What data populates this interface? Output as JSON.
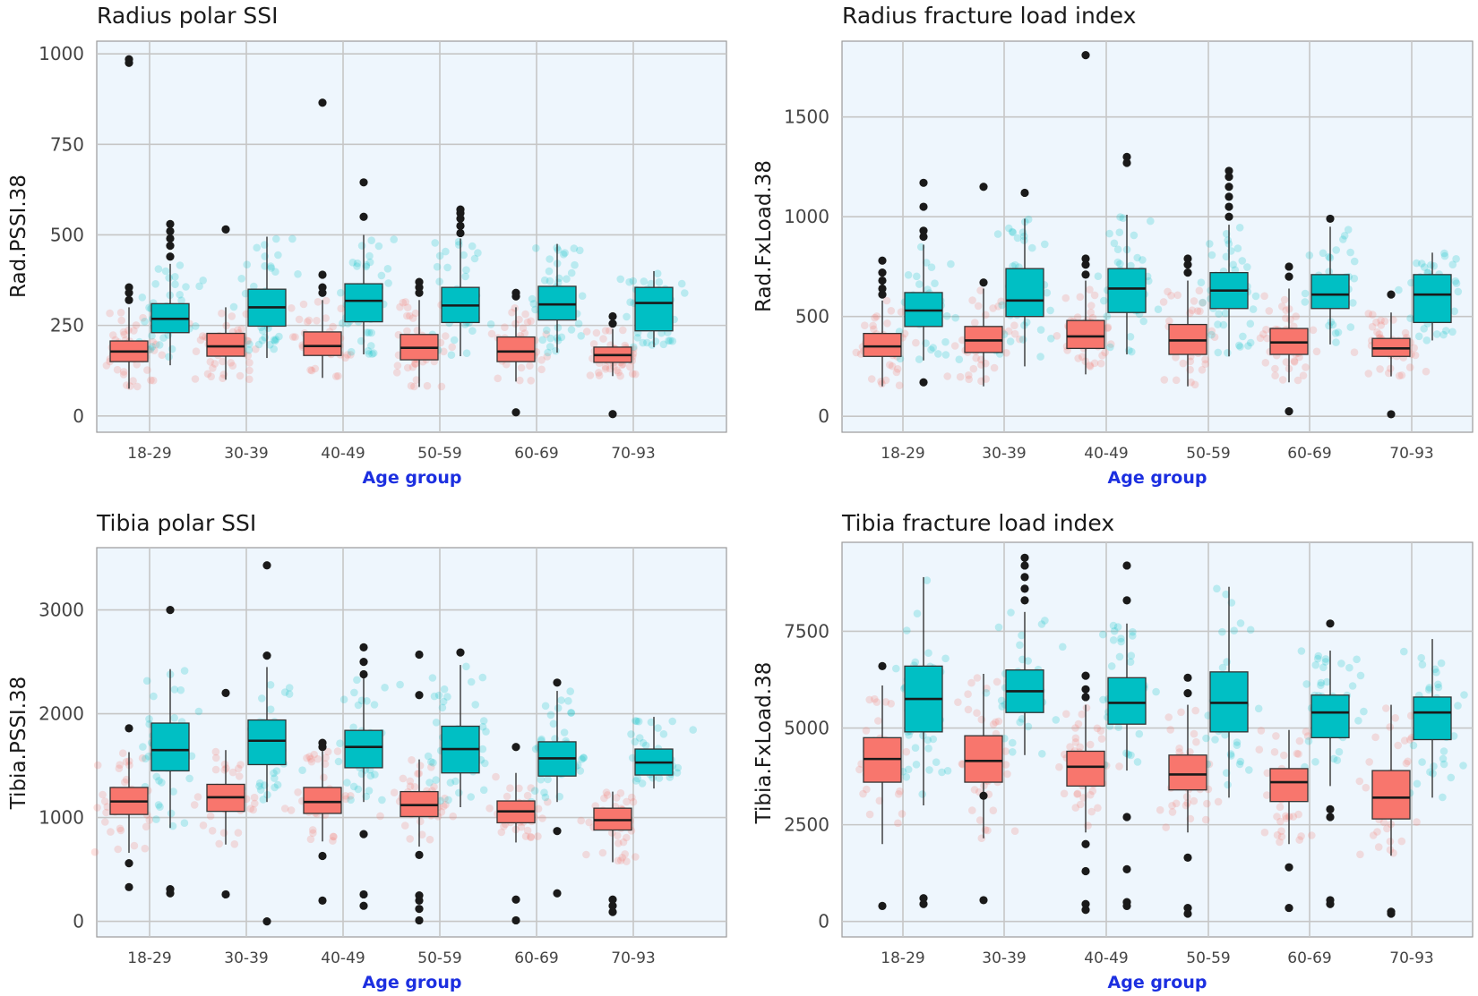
{
  "legend": {
    "group_a_color": "#F8766D",
    "group_b_color": "#00BFC4"
  },
  "chart_data": [
    {
      "type": "box",
      "title": "Radius polar SSI",
      "xlabel": "Age group",
      "ylabel": "Rad.PSSI.38",
      "ylim": [
        -45,
        1035
      ],
      "yticks": [
        0,
        250,
        500,
        750,
        1000
      ],
      "categories": [
        "18-29",
        "30-39",
        "40-49",
        "50-59",
        "60-69",
        "70-93"
      ],
      "series": [
        {
          "name": "red",
          "color": "#F8766D",
          "boxes": [
            {
              "whislo": 75,
              "q1": 150,
              "med": 178,
              "q3": 207,
              "whishi": 300,
              "outliers": [
                320,
                340,
                355,
                975,
                985
              ]
            },
            {
              "whislo": 100,
              "q1": 165,
              "med": 192,
              "q3": 228,
              "whishi": 300,
              "outliers": [
                515
              ]
            },
            {
              "whislo": 105,
              "q1": 167,
              "med": 193,
              "q3": 232,
              "whishi": 320,
              "outliers": [
                340,
                355,
                390,
                865
              ]
            },
            {
              "whislo": 80,
              "q1": 155,
              "med": 188,
              "q3": 225,
              "whishi": 320,
              "outliers": [
                340,
                355,
                370
              ]
            },
            {
              "whislo": 95,
              "q1": 150,
              "med": 178,
              "q3": 218,
              "whishi": 300,
              "outliers": [
                10,
                330,
                340
              ]
            },
            {
              "whislo": 110,
              "q1": 148,
              "med": 168,
              "q3": 190,
              "whishi": 240,
              "outliers": [
                5,
                255,
                275
              ]
            }
          ]
        },
        {
          "name": "teal",
          "color": "#00BFC4",
          "boxes": [
            {
              "whislo": 140,
              "q1": 230,
              "med": 268,
              "q3": 310,
              "whishi": 420,
              "outliers": [
                440,
                470,
                490,
                510,
                530
              ]
            },
            {
              "whislo": 160,
              "q1": 248,
              "med": 300,
              "q3": 350,
              "whishi": 495,
              "outliers": []
            },
            {
              "whislo": 170,
              "q1": 260,
              "med": 318,
              "q3": 365,
              "whishi": 500,
              "outliers": [
                550,
                645
              ]
            },
            {
              "whislo": 165,
              "q1": 258,
              "med": 305,
              "q3": 355,
              "whishi": 490,
              "outliers": [
                505,
                525,
                545,
                560,
                570
              ]
            },
            {
              "whislo": 175,
              "q1": 265,
              "med": 308,
              "q3": 358,
              "whishi": 475,
              "outliers": []
            },
            {
              "whislo": 190,
              "q1": 235,
              "med": 312,
              "q3": 355,
              "whishi": 400,
              "outliers": []
            }
          ]
        }
      ]
    },
    {
      "type": "box",
      "title": "Radius fracture load index",
      "xlabel": "Age group",
      "ylabel": "Rad.FxLoad.38",
      "ylim": [
        -80,
        1880
      ],
      "yticks": [
        0,
        500,
        1000,
        1500
      ],
      "categories": [
        "18-29",
        "30-39",
        "40-49",
        "50-59",
        "60-69",
        "70-93"
      ],
      "series": [
        {
          "name": "red",
          "color": "#F8766D",
          "boxes": [
            {
              "whislo": 150,
              "q1": 300,
              "med": 350,
              "q3": 415,
              "whishi": 580,
              "outliers": [
                610,
                640,
                680,
                720,
                780
              ]
            },
            {
              "whislo": 150,
              "q1": 320,
              "med": 380,
              "q3": 450,
              "whishi": 640,
              "outliers": [
                670,
                1150
              ]
            },
            {
              "whislo": 210,
              "q1": 340,
              "med": 400,
              "q3": 480,
              "whishi": 680,
              "outliers": [
                710,
                760,
                790,
                1810
              ]
            },
            {
              "whislo": 150,
              "q1": 310,
              "med": 380,
              "q3": 460,
              "whishi": 680,
              "outliers": [
                720,
                760,
                790
              ]
            },
            {
              "whislo": 170,
              "q1": 310,
              "med": 370,
              "q3": 440,
              "whishi": 640,
              "outliers": [
                25,
                700,
                750
              ]
            },
            {
              "whislo": 200,
              "q1": 300,
              "med": 340,
              "q3": 390,
              "whishi": 520,
              "outliers": [
                10,
                610
              ]
            }
          ]
        },
        {
          "name": "teal",
          "color": "#00BFC4",
          "boxes": [
            {
              "whislo": 280,
              "q1": 450,
              "med": 530,
              "q3": 620,
              "whishi": 860,
              "outliers": [
                170,
                900,
                930,
                1050,
                1170
              ]
            },
            {
              "whislo": 250,
              "q1": 500,
              "med": 580,
              "q3": 740,
              "whishi": 990,
              "outliers": [
                1120
              ]
            },
            {
              "whislo": 310,
              "q1": 520,
              "med": 640,
              "q3": 740,
              "whishi": 1010,
              "outliers": [
                1270,
                1300
              ]
            },
            {
              "whislo": 300,
              "q1": 540,
              "med": 630,
              "q3": 720,
              "whishi": 960,
              "outliers": [
                1000,
                1050,
                1100,
                1150,
                1200,
                1230
              ]
            },
            {
              "whislo": 360,
              "q1": 540,
              "med": 610,
              "q3": 710,
              "whishi": 950,
              "outliers": [
                990
              ]
            },
            {
              "whislo": 380,
              "q1": 470,
              "med": 610,
              "q3": 710,
              "whishi": 820,
              "outliers": []
            }
          ]
        }
      ]
    },
    {
      "type": "box",
      "title": "Tibia polar SSI",
      "xlabel": "Age group",
      "ylabel": "Tibia.PSSI.38",
      "ylim": [
        -150,
        3600
      ],
      "yticks": [
        0,
        1000,
        2000,
        3000
      ],
      "categories": [
        "18-29",
        "30-39",
        "40-49",
        "50-59",
        "60-69",
        "70-93"
      ],
      "series": [
        {
          "name": "red",
          "color": "#F8766D",
          "boxes": [
            {
              "whislo": 660,
              "q1": 1030,
              "med": 1155,
              "q3": 1290,
              "whishi": 1630,
              "outliers": [
                330,
                560,
                1860
              ]
            },
            {
              "whislo": 740,
              "q1": 1060,
              "med": 1195,
              "q3": 1320,
              "whishi": 1650,
              "outliers": [
                260,
                2200
              ]
            },
            {
              "whislo": 770,
              "q1": 1040,
              "med": 1150,
              "q3": 1290,
              "whishi": 1640,
              "outliers": [
                200,
                630,
                1680,
                1720
              ]
            },
            {
              "whislo": 720,
              "q1": 1010,
              "med": 1120,
              "q3": 1250,
              "whishi": 1560,
              "outliers": [
                10,
                120,
                200,
                250,
                640,
                2180,
                2570
              ]
            },
            {
              "whislo": 760,
              "q1": 950,
              "med": 1060,
              "q3": 1160,
              "whishi": 1430,
              "outliers": [
                10,
                210,
                1680
              ]
            },
            {
              "whislo": 570,
              "q1": 880,
              "med": 975,
              "q3": 1090,
              "whishi": 1250,
              "outliers": [
                90,
                150,
                210
              ]
            }
          ]
        },
        {
          "name": "teal",
          "color": "#00BFC4",
          "boxes": [
            {
              "whislo": 900,
              "q1": 1450,
              "med": 1650,
              "q3": 1910,
              "whishi": 2430,
              "outliers": [
                270,
                310,
                3000
              ]
            },
            {
              "whislo": 1150,
              "q1": 1510,
              "med": 1740,
              "q3": 1940,
              "whishi": 2450,
              "outliers": [
                0,
                2560,
                3430
              ]
            },
            {
              "whislo": 1150,
              "q1": 1480,
              "med": 1680,
              "q3": 1840,
              "whishi": 2350,
              "outliers": [
                150,
                260,
                840,
                2380,
                2500,
                2640
              ]
            },
            {
              "whislo": 1100,
              "q1": 1430,
              "med": 1660,
              "q3": 1880,
              "whishi": 2470,
              "outliers": [
                2590
              ]
            },
            {
              "whislo": 1150,
              "q1": 1400,
              "med": 1570,
              "q3": 1730,
              "whishi": 2220,
              "outliers": [
                270,
                870,
                2300
              ]
            },
            {
              "whislo": 1280,
              "q1": 1410,
              "med": 1530,
              "q3": 1660,
              "whishi": 1970,
              "outliers": []
            }
          ]
        }
      ]
    },
    {
      "type": "box",
      "title": "Tibia fracture load index",
      "xlabel": "Age group",
      "ylabel": "Tibia.FxLoad.38",
      "ylim": [
        -400,
        9800
      ],
      "yticks": [
        0,
        2500,
        5000,
        7500
      ],
      "categories": [
        "18-29",
        "30-39",
        "40-49",
        "50-59",
        "60-69",
        "70-93"
      ],
      "series": [
        {
          "name": "red",
          "color": "#F8766D",
          "boxes": [
            {
              "whislo": 2000,
              "q1": 3600,
              "med": 4200,
              "q3": 4750,
              "whishi": 6100,
              "outliers": [
                400,
                6600
              ]
            },
            {
              "whislo": 2150,
              "q1": 3600,
              "med": 4150,
              "q3": 4800,
              "whishi": 6400,
              "outliers": [
                550,
                3250
              ]
            },
            {
              "whislo": 2300,
              "q1": 3500,
              "med": 4000,
              "q3": 4400,
              "whishi": 5600,
              "outliers": [
                300,
                450,
                1300,
                2000,
                5800,
                6000,
                6350
              ]
            },
            {
              "whislo": 2300,
              "q1": 3400,
              "med": 3800,
              "q3": 4300,
              "whishi": 5600,
              "outliers": [
                200,
                350,
                1650,
                5900,
                6300
              ]
            },
            {
              "whislo": 2000,
              "q1": 3100,
              "med": 3600,
              "q3": 3950,
              "whishi": 4950,
              "outliers": [
                350,
                1400
              ]
            },
            {
              "whislo": 1700,
              "q1": 2650,
              "med": 3200,
              "q3": 3900,
              "whishi": 5600,
              "outliers": [
                200,
                250
              ]
            }
          ]
        },
        {
          "name": "teal",
          "color": "#00BFC4",
          "boxes": [
            {
              "whislo": 3000,
              "q1": 4900,
              "med": 5750,
              "q3": 6600,
              "whishi": 8900,
              "outliers": [
                450,
                600
              ]
            },
            {
              "whislo": 4300,
              "q1": 5400,
              "med": 5950,
              "q3": 6500,
              "whishi": 8000,
              "outliers": [
                8300,
                8600,
                8900,
                9200,
                9400
              ]
            },
            {
              "whislo": 3900,
              "q1": 5100,
              "med": 5650,
              "q3": 6300,
              "whishi": 7700,
              "outliers": [
                400,
                500,
                1350,
                2700,
                8300,
                9200
              ]
            },
            {
              "whislo": 3200,
              "q1": 4900,
              "med": 5650,
              "q3": 6450,
              "whishi": 8650,
              "outliers": []
            },
            {
              "whislo": 3500,
              "q1": 4750,
              "med": 5400,
              "q3": 5850,
              "whishi": 7000,
              "outliers": [
                450,
                550,
                2700,
                2900,
                7700
              ]
            },
            {
              "whislo": 3200,
              "q1": 4700,
              "med": 5400,
              "q3": 5800,
              "whishi": 7300,
              "outliers": []
            }
          ]
        }
      ]
    }
  ]
}
